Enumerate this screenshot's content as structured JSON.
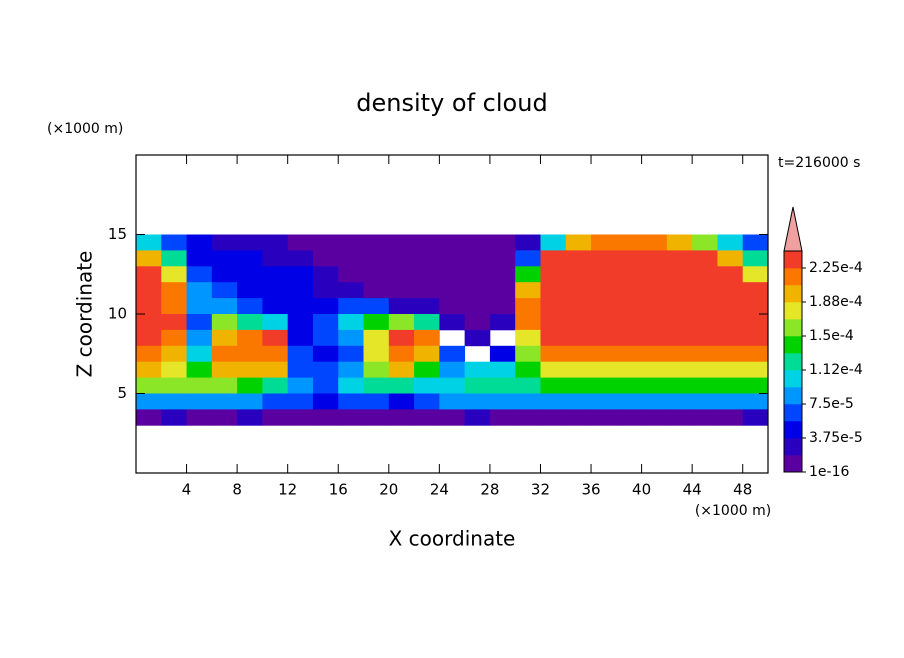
{
  "chart_data": {
    "type": "contour",
    "title": "density of cloud",
    "annotation": "t=216000 s",
    "x_label": "X coordinate",
    "y_label": "Z coordinate",
    "x_unit": "(×1000 m)",
    "y_unit": "(×1000 m)",
    "xlim": [
      0,
      50
    ],
    "ylim": [
      0,
      20
    ],
    "xticks": [
      4,
      8,
      12,
      16,
      20,
      24,
      28,
      32,
      36,
      40,
      44,
      48
    ],
    "yticks": [
      5,
      10,
      15
    ],
    "x": [
      1,
      3,
      5,
      7,
      9,
      11,
      13,
      15,
      17,
      19,
      21,
      23,
      25,
      27,
      29,
      31,
      33,
      35,
      37,
      39,
      41,
      43,
      45,
      47,
      49
    ],
    "y": [
      14.5,
      13.5,
      12.5,
      11.5,
      10.5,
      9.5,
      8.5,
      7.5,
      6.5,
      5.5,
      4.5,
      3.5
    ],
    "z": [
      [
        0.0001,
        6e-05,
        5e-05,
        3e-05,
        3e-05,
        3e-05,
        1e-05,
        1e-05,
        1e-05,
        1e-05,
        1e-05,
        1e-05,
        1e-05,
        1e-05,
        1e-05,
        3e-05,
        0.0001,
        0.0002,
        0.00022,
        0.00022,
        0.00022,
        0.0002,
        0.00016,
        0.0001,
        6e-05
      ],
      [
        0.0002,
        0.00012,
        5e-05,
        5e-05,
        5e-05,
        3e-05,
        3e-05,
        1e-05,
        1e-05,
        1e-05,
        1e-05,
        1e-05,
        1e-05,
        1e-05,
        1e-05,
        6e-05,
        0.00024,
        0.00024,
        0.00024,
        0.00024,
        0.00024,
        0.00024,
        0.00024,
        0.0002,
        0.00012
      ],
      [
        0.00024,
        0.00018,
        6e-05,
        5e-05,
        5e-05,
        5e-05,
        5e-05,
        3e-05,
        1e-05,
        1e-05,
        1e-05,
        1e-05,
        1e-05,
        1e-05,
        1e-05,
        0.00014,
        0.00024,
        0.00024,
        0.00024,
        0.00024,
        0.00024,
        0.00024,
        0.00024,
        0.00024,
        0.00018
      ],
      [
        0.00024,
        0.00022,
        8e-05,
        6e-05,
        5e-05,
        5e-05,
        5e-05,
        3e-05,
        3e-05,
        1e-05,
        1e-05,
        1e-05,
        1e-05,
        1e-05,
        1e-05,
        0.0002,
        0.00024,
        0.00024,
        0.00024,
        0.00024,
        0.00024,
        0.00024,
        0.00024,
        0.00024,
        0.00024
      ],
      [
        0.00024,
        0.00022,
        8e-05,
        8e-05,
        6e-05,
        5e-05,
        5e-05,
        5e-05,
        6e-05,
        6e-05,
        3e-05,
        3e-05,
        1e-05,
        1e-05,
        1e-05,
        0.00022,
        0.00024,
        0.00024,
        0.00024,
        0.00024,
        0.00024,
        0.00024,
        0.00024,
        0.00024,
        0.00024
      ],
      [
        0.00024,
        0.00024,
        6e-05,
        0.00016,
        0.00012,
        0.0001,
        5e-05,
        6e-05,
        0.0001,
        0.00014,
        0.00016,
        0.00012,
        3e-05,
        1e-05,
        3e-05,
        0.00022,
        0.00024,
        0.00024,
        0.00024,
        0.00024,
        0.00024,
        0.00024,
        0.00024,
        0.00024,
        0.00024
      ],
      [
        0.00024,
        0.00022,
        8e-05,
        0.0002,
        0.00022,
        0.00024,
        5e-05,
        6e-05,
        8e-05,
        0.00018,
        0.00024,
        0.00022,
        null,
        3e-05,
        null,
        0.00018,
        0.00024,
        0.00024,
        0.00024,
        0.00024,
        0.00024,
        0.00024,
        0.00024,
        0.00024,
        0.00024
      ],
      [
        0.00022,
        0.0002,
        0.0001,
        0.00022,
        0.00022,
        0.00022,
        6e-05,
        5e-05,
        6e-05,
        0.00018,
        0.00022,
        0.0002,
        6e-05,
        null,
        5e-05,
        0.00016,
        0.00022,
        0.00022,
        0.00022,
        0.00022,
        0.00022,
        0.00022,
        0.00022,
        0.00022,
        0.00022
      ],
      [
        0.0002,
        0.00018,
        0.00014,
        0.0002,
        0.0002,
        0.0002,
        6e-05,
        6e-05,
        8e-05,
        0.00016,
        0.0002,
        0.00014,
        8e-05,
        0.0001,
        0.0001,
        0.00014,
        0.00018,
        0.00018,
        0.00018,
        0.00018,
        0.00018,
        0.00018,
        0.00018,
        0.00018,
        0.00018
      ],
      [
        0.00016,
        0.00016,
        0.00016,
        0.00016,
        0.00014,
        0.00012,
        8e-05,
        6e-05,
        0.0001,
        0.00012,
        0.00012,
        0.0001,
        0.0001,
        0.00012,
        0.00012,
        0.00012,
        0.00014,
        0.00014,
        0.00014,
        0.00014,
        0.00014,
        0.00014,
        0.00014,
        0.00014,
        0.00014
      ],
      [
        8e-05,
        8e-05,
        8e-05,
        8e-05,
        8e-05,
        6e-05,
        6e-05,
        5e-05,
        6e-05,
        6e-05,
        5e-05,
        6e-05,
        8e-05,
        8e-05,
        8e-05,
        8e-05,
        8e-05,
        8e-05,
        8e-05,
        8e-05,
        8e-05,
        8e-05,
        8e-05,
        8e-05,
        8e-05
      ],
      [
        1e-05,
        3e-05,
        1e-05,
        1e-05,
        3e-05,
        1e-05,
        1e-05,
        1e-05,
        1e-05,
        1e-05,
        1e-05,
        1e-05,
        1e-05,
        3e-05,
        1e-05,
        1e-05,
        1e-05,
        1e-05,
        1e-05,
        1e-05,
        1e-05,
        1e-05,
        1e-05,
        1e-05,
        3e-05
      ]
    ],
    "levels": [
      1e-16,
      1.875e-05,
      3.75e-05,
      5.625e-05,
      7.5e-05,
      9.375e-05,
      0.0001125,
      0.00013125,
      0.00015,
      0.00016875,
      0.0001875,
      0.00020625,
      0.000225,
      0.00024375
    ],
    "colors": [
      "#5a00a0",
      "#2800be",
      "#0000e6",
      "#0046ff",
      "#0096ff",
      "#00d2e6",
      "#00dc96",
      "#00d200",
      "#8ce628",
      "#e6e628",
      "#f0b400",
      "#fa7800",
      "#f03c28"
    ],
    "extend_color": "#f0a0a0",
    "colorbar_ticks": [
      {
        "value": 1e-16,
        "label": "1e-16"
      },
      {
        "value": 3.75e-05,
        "label": "3.75e-5"
      },
      {
        "value": 7.5e-05,
        "label": "7.5e-5"
      },
      {
        "value": 0.0001125,
        "label": "1.12e-4"
      },
      {
        "value": 0.00015,
        "label": "1.5e-4"
      },
      {
        "value": 0.0001875,
        "label": "1.88e-4"
      },
      {
        "value": 0.000225,
        "label": "2.25e-4"
      }
    ]
  }
}
